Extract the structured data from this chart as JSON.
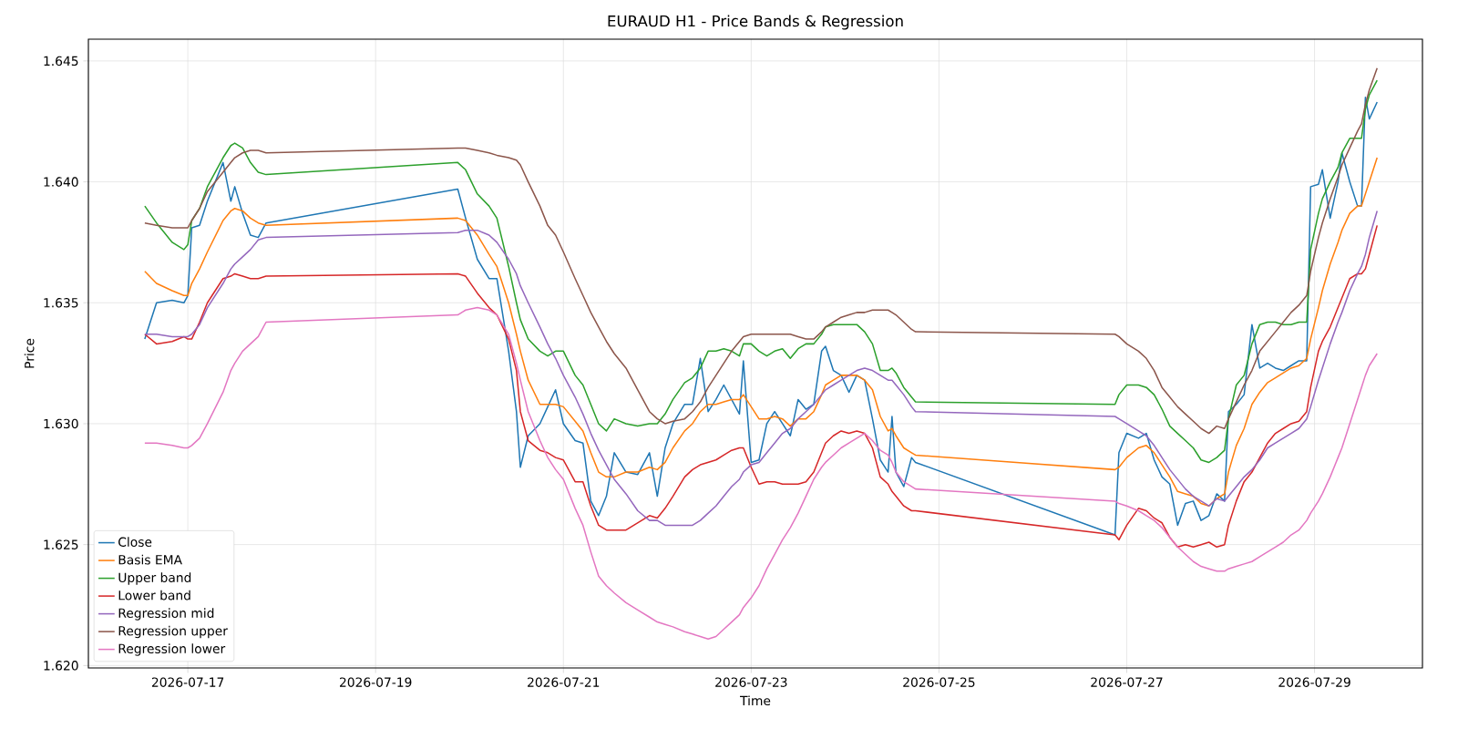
{
  "chart_data": {
    "type": "line",
    "title": "EURAUD H1 - Price Bands & Regression",
    "xlabel": "Time",
    "ylabel": "Price",
    "x": [
      "2026-07-16T13:00",
      "2026-07-16T16:00",
      "2026-07-16T20:00",
      "2026-07-16T23:00",
      "2026-07-17T00:00",
      "2026-07-17T01:00",
      "2026-07-17T03:00",
      "2026-07-17T05:00",
      "2026-07-17T09:00",
      "2026-07-17T11:00",
      "2026-07-17T12:00",
      "2026-07-17T14:00",
      "2026-07-17T16:00",
      "2026-07-17T18:00",
      "2026-07-17T20:00",
      "2026-07-19T21:00",
      "2026-07-19T23:00",
      "2026-07-20T02:00",
      "2026-07-20T05:00",
      "2026-07-20T07:00",
      "2026-07-20T10:00",
      "2026-07-20T12:00",
      "2026-07-20T13:00",
      "2026-07-20T15:00",
      "2026-07-20T18:00",
      "2026-07-20T20:00",
      "2026-07-20T22:00",
      "2026-07-21T00:00",
      "2026-07-21T03:00",
      "2026-07-21T05:00",
      "2026-07-21T07:00",
      "2026-07-21T09:00",
      "2026-07-21T11:00",
      "2026-07-21T13:00",
      "2026-07-21T16:00",
      "2026-07-21T19:00",
      "2026-07-21T22:00",
      "2026-07-22T00:00",
      "2026-07-22T02:00",
      "2026-07-22T04:00",
      "2026-07-22T07:00",
      "2026-07-22T09:00",
      "2026-07-22T11:00",
      "2026-07-22T13:00",
      "2026-07-22T15:00",
      "2026-07-22T17:00",
      "2026-07-22T19:00",
      "2026-07-22T21:00",
      "2026-07-22T22:00",
      "2026-07-23T00:00",
      "2026-07-23T02:00",
      "2026-07-23T04:00",
      "2026-07-23T06:00",
      "2026-07-23T08:00",
      "2026-07-23T10:00",
      "2026-07-23T12:00",
      "2026-07-23T14:00",
      "2026-07-23T16:00",
      "2026-07-23T18:00",
      "2026-07-23T19:00",
      "2026-07-23T21:00",
      "2026-07-23T23:00",
      "2026-07-24T01:00",
      "2026-07-24T03:00",
      "2026-07-24T05:00",
      "2026-07-24T07:00",
      "2026-07-24T09:00",
      "2026-07-24T11:00",
      "2026-07-24T12:00",
      "2026-07-24T13:00",
      "2026-07-24T15:00",
      "2026-07-24T17:00",
      "2026-07-24T18:00",
      "2026-07-26T21:00",
      "2026-07-26T22:00",
      "2026-07-27T00:00",
      "2026-07-27T03:00",
      "2026-07-27T05:00",
      "2026-07-27T07:00",
      "2026-07-27T09:00",
      "2026-07-27T11:00",
      "2026-07-27T13:00",
      "2026-07-27T15:00",
      "2026-07-27T17:00",
      "2026-07-27T19:00",
      "2026-07-27T21:00",
      "2026-07-27T23:00",
      "2026-07-28T01:00",
      "2026-07-28T02:00",
      "2026-07-28T04:00",
      "2026-07-28T06:00",
      "2026-07-28T08:00",
      "2026-07-28T10:00",
      "2026-07-28T12:00",
      "2026-07-28T14:00",
      "2026-07-28T16:00",
      "2026-07-28T18:00",
      "2026-07-28T20:00",
      "2026-07-28T22:00",
      "2026-07-28T23:00",
      "2026-07-29T01:00",
      "2026-07-29T02:00",
      "2026-07-29T04:00",
      "2026-07-29T06:00",
      "2026-07-29T07:00",
      "2026-07-29T09:00",
      "2026-07-29T11:00",
      "2026-07-29T12:00",
      "2026-07-29T13:00",
      "2026-07-29T14:00",
      "2026-07-29T16:00"
    ],
    "series": [
      {
        "name": "Close",
        "color": "#1f77b4",
        "values": [
          1.6335,
          1.635,
          1.6351,
          1.635,
          1.6353,
          1.6381,
          1.6382,
          1.6392,
          1.6408,
          1.6392,
          1.6398,
          1.6387,
          1.6378,
          1.6377,
          1.6383,
          1.6397,
          1.6385,
          1.6368,
          1.636,
          1.636,
          1.633,
          1.6305,
          1.6282,
          1.6295,
          1.63,
          1.6307,
          1.6314,
          1.63,
          1.6293,
          1.6292,
          1.6268,
          1.6262,
          1.627,
          1.6288,
          1.628,
          1.6279,
          1.6288,
          1.627,
          1.629,
          1.63,
          1.6308,
          1.6308,
          1.6327,
          1.6305,
          1.631,
          1.6316,
          1.631,
          1.6304,
          1.6326,
          1.6284,
          1.6285,
          1.63,
          1.6305,
          1.63,
          1.6295,
          1.631,
          1.6306,
          1.6308,
          1.633,
          1.6332,
          1.6322,
          1.632,
          1.6313,
          1.632,
          1.6318,
          1.6302,
          1.6285,
          1.628,
          1.6303,
          1.628,
          1.6274,
          1.6286,
          1.6284,
          1.6254,
          1.6288,
          1.6296,
          1.6294,
          1.6296,
          1.6285,
          1.6278,
          1.6275,
          1.6258,
          1.6267,
          1.6268,
          1.626,
          1.6262,
          1.6271,
          1.6268,
          1.6305,
          1.6308,
          1.6312,
          1.6341,
          1.6323,
          1.6325,
          1.6323,
          1.6322,
          1.6324,
          1.6326,
          1.6326,
          1.6398,
          1.6399,
          1.6405,
          1.6385,
          1.64,
          1.6412,
          1.64,
          1.639,
          1.639,
          1.6435,
          1.6426,
          1.6433
        ]
      },
      {
        "name": "Basis EMA",
        "color": "#ff7f0e",
        "values": [
          1.6363,
          1.6358,
          1.6355,
          1.6353,
          1.6353,
          1.6358,
          1.6364,
          1.6371,
          1.6384,
          1.6388,
          1.6389,
          1.6388,
          1.6385,
          1.6383,
          1.6382,
          1.6385,
          1.6384,
          1.6378,
          1.637,
          1.6365,
          1.635,
          1.6337,
          1.633,
          1.6318,
          1.6308,
          1.6308,
          1.6308,
          1.6307,
          1.6301,
          1.6297,
          1.6288,
          1.628,
          1.6278,
          1.6278,
          1.628,
          1.628,
          1.6282,
          1.6281,
          1.6284,
          1.629,
          1.6297,
          1.63,
          1.6305,
          1.6308,
          1.6308,
          1.6309,
          1.631,
          1.631,
          1.6312,
          1.6307,
          1.6302,
          1.6302,
          1.6303,
          1.6302,
          1.6299,
          1.6302,
          1.6302,
          1.6305,
          1.6312,
          1.6316,
          1.6318,
          1.632,
          1.632,
          1.632,
          1.6318,
          1.6314,
          1.6303,
          1.6297,
          1.6298,
          1.6295,
          1.629,
          1.6288,
          1.6287,
          1.6281,
          1.6282,
          1.6286,
          1.629,
          1.6291,
          1.6288,
          1.6283,
          1.6278,
          1.6272,
          1.6271,
          1.627,
          1.6267,
          1.6266,
          1.6269,
          1.6271,
          1.628,
          1.6291,
          1.6298,
          1.6308,
          1.6313,
          1.6317,
          1.6319,
          1.6321,
          1.6323,
          1.6324,
          1.6327,
          1.6335,
          1.6348,
          1.6355,
          1.6366,
          1.6375,
          1.638,
          1.6387,
          1.639,
          1.639,
          1.6395,
          1.64,
          1.641
        ]
      },
      {
        "name": "Upper band",
        "color": "#2ca02c",
        "values": [
          1.639,
          1.6383,
          1.6375,
          1.6372,
          1.6374,
          1.6384,
          1.6389,
          1.6398,
          1.641,
          1.6415,
          1.6416,
          1.6414,
          1.6408,
          1.6404,
          1.6403,
          1.6408,
          1.6405,
          1.6395,
          1.639,
          1.6385,
          1.6365,
          1.635,
          1.6343,
          1.6335,
          1.633,
          1.6328,
          1.633,
          1.633,
          1.632,
          1.6316,
          1.6308,
          1.63,
          1.6297,
          1.6302,
          1.63,
          1.6299,
          1.63,
          1.63,
          1.6304,
          1.631,
          1.6317,
          1.6319,
          1.6323,
          1.633,
          1.633,
          1.6331,
          1.633,
          1.6328,
          1.6333,
          1.6333,
          1.633,
          1.6328,
          1.633,
          1.6331,
          1.6327,
          1.6331,
          1.6333,
          1.6333,
          1.6337,
          1.634,
          1.6341,
          1.6341,
          1.6341,
          1.6341,
          1.6338,
          1.6333,
          1.6322,
          1.6322,
          1.6323,
          1.6321,
          1.6315,
          1.6311,
          1.6309,
          1.6308,
          1.6312,
          1.6316,
          1.6316,
          1.6315,
          1.6312,
          1.6306,
          1.6299,
          1.6296,
          1.6293,
          1.629,
          1.6285,
          1.6284,
          1.6286,
          1.6289,
          1.6302,
          1.6316,
          1.632,
          1.6333,
          1.6341,
          1.6342,
          1.6342,
          1.6341,
          1.6341,
          1.6342,
          1.6342,
          1.6372,
          1.6387,
          1.6393,
          1.64,
          1.6406,
          1.6412,
          1.6418,
          1.6418,
          1.6418,
          1.643,
          1.6436,
          1.6442
        ]
      },
      {
        "name": "Lower band",
        "color": "#d62728",
        "values": [
          1.6337,
          1.6333,
          1.6334,
          1.6336,
          1.6335,
          1.6335,
          1.6342,
          1.635,
          1.636,
          1.6361,
          1.6362,
          1.6361,
          1.636,
          1.636,
          1.6361,
          1.6362,
          1.6361,
          1.6354,
          1.6348,
          1.6345,
          1.6335,
          1.6322,
          1.6305,
          1.6293,
          1.6289,
          1.6288,
          1.6286,
          1.6285,
          1.6276,
          1.6276,
          1.6266,
          1.6258,
          1.6256,
          1.6256,
          1.6256,
          1.6259,
          1.6262,
          1.6261,
          1.6265,
          1.627,
          1.6278,
          1.6281,
          1.6283,
          1.6284,
          1.6285,
          1.6287,
          1.6289,
          1.629,
          1.629,
          1.6282,
          1.6275,
          1.6276,
          1.6276,
          1.6275,
          1.6275,
          1.6275,
          1.6276,
          1.628,
          1.6288,
          1.6292,
          1.6295,
          1.6297,
          1.6296,
          1.6297,
          1.6296,
          1.629,
          1.6278,
          1.6275,
          1.6272,
          1.627,
          1.6266,
          1.6264,
          1.6264,
          1.6254,
          1.6252,
          1.6258,
          1.6265,
          1.6264,
          1.6261,
          1.6259,
          1.6253,
          1.6249,
          1.625,
          1.6249,
          1.625,
          1.6251,
          1.6249,
          1.625,
          1.6258,
          1.6268,
          1.6276,
          1.628,
          1.6286,
          1.6292,
          1.6296,
          1.6298,
          1.63,
          1.6301,
          1.6305,
          1.6315,
          1.633,
          1.6334,
          1.634,
          1.6348,
          1.6352,
          1.636,
          1.6362,
          1.6362,
          1.6364,
          1.637,
          1.6382
        ]
      },
      {
        "name": "Regression mid",
        "color": "#9467bd",
        "values": [
          1.6337,
          1.6337,
          1.6336,
          1.6336,
          1.6336,
          1.6337,
          1.6341,
          1.6348,
          1.6358,
          1.6364,
          1.6366,
          1.6369,
          1.6372,
          1.6376,
          1.6377,
          1.6379,
          1.638,
          1.638,
          1.6378,
          1.6375,
          1.6368,
          1.6362,
          1.6357,
          1.635,
          1.634,
          1.6333,
          1.6327,
          1.632,
          1.6311,
          1.6304,
          1.6296,
          1.6289,
          1.6283,
          1.6277,
          1.6271,
          1.6264,
          1.626,
          1.626,
          1.6258,
          1.6258,
          1.6258,
          1.6258,
          1.626,
          1.6263,
          1.6266,
          1.627,
          1.6274,
          1.6277,
          1.628,
          1.6283,
          1.6284,
          1.6288,
          1.6292,
          1.6296,
          1.6298,
          1.6302,
          1.6305,
          1.6308,
          1.6312,
          1.6314,
          1.6316,
          1.6318,
          1.632,
          1.6322,
          1.6323,
          1.6322,
          1.632,
          1.6318,
          1.6318,
          1.6316,
          1.6312,
          1.6307,
          1.6305,
          1.6303,
          1.6302,
          1.63,
          1.6297,
          1.6295,
          1.6291,
          1.6286,
          1.6281,
          1.6277,
          1.6273,
          1.627,
          1.6268,
          1.6266,
          1.6269,
          1.6268,
          1.627,
          1.6274,
          1.6278,
          1.6281,
          1.6285,
          1.629,
          1.6292,
          1.6294,
          1.6296,
          1.6298,
          1.6302,
          1.6307,
          1.6318,
          1.6323,
          1.6333,
          1.6342,
          1.6346,
          1.6355,
          1.6362,
          1.6365,
          1.637,
          1.6377,
          1.6388
        ]
      },
      {
        "name": "Regression upper",
        "color": "#8c564b",
        "values": [
          1.6383,
          1.6382,
          1.6381,
          1.6381,
          1.6381,
          1.6384,
          1.6389,
          1.6396,
          1.6404,
          1.6408,
          1.641,
          1.6412,
          1.6413,
          1.6413,
          1.6412,
          1.6414,
          1.6414,
          1.6413,
          1.6412,
          1.6411,
          1.641,
          1.6409,
          1.6407,
          1.64,
          1.639,
          1.6382,
          1.6378,
          1.6371,
          1.636,
          1.6353,
          1.6346,
          1.634,
          1.6334,
          1.6329,
          1.6323,
          1.6314,
          1.6305,
          1.6302,
          1.63,
          1.6301,
          1.6302,
          1.6305,
          1.6309,
          1.6315,
          1.632,
          1.6325,
          1.633,
          1.6334,
          1.6336,
          1.6337,
          1.6337,
          1.6337,
          1.6337,
          1.6337,
          1.6337,
          1.6336,
          1.6335,
          1.6335,
          1.6338,
          1.634,
          1.6342,
          1.6344,
          1.6345,
          1.6346,
          1.6346,
          1.6347,
          1.6347,
          1.6347,
          1.6346,
          1.6345,
          1.6342,
          1.6339,
          1.6338,
          1.6337,
          1.6336,
          1.6333,
          1.633,
          1.6327,
          1.6322,
          1.6315,
          1.6311,
          1.6307,
          1.6304,
          1.6301,
          1.6298,
          1.6296,
          1.6299,
          1.6298,
          1.6302,
          1.6309,
          1.6316,
          1.6322,
          1.633,
          1.6334,
          1.6338,
          1.6342,
          1.6346,
          1.6349,
          1.6353,
          1.6363,
          1.6377,
          1.6383,
          1.6393,
          1.6402,
          1.6407,
          1.6414,
          1.6421,
          1.6424,
          1.6432,
          1.6438,
          1.6447
        ]
      },
      {
        "name": "Regression lower",
        "color": "#e377c2",
        "values": [
          1.6292,
          1.6292,
          1.6291,
          1.629,
          1.629,
          1.6291,
          1.6294,
          1.63,
          1.6313,
          1.6322,
          1.6325,
          1.633,
          1.6333,
          1.6336,
          1.6342,
          1.6345,
          1.6347,
          1.6348,
          1.6347,
          1.6345,
          1.6337,
          1.6325,
          1.6318,
          1.6305,
          1.6293,
          1.6286,
          1.6281,
          1.6277,
          1.6265,
          1.6258,
          1.6247,
          1.6237,
          1.6233,
          1.623,
          1.6226,
          1.6223,
          1.622,
          1.6218,
          1.6217,
          1.6216,
          1.6214,
          1.6213,
          1.6212,
          1.6211,
          1.6212,
          1.6215,
          1.6218,
          1.6221,
          1.6224,
          1.6228,
          1.6233,
          1.624,
          1.6246,
          1.6252,
          1.6257,
          1.6263,
          1.627,
          1.6277,
          1.6282,
          1.6284,
          1.6287,
          1.629,
          1.6292,
          1.6294,
          1.6296,
          1.6293,
          1.6289,
          1.6287,
          1.6284,
          1.628,
          1.6276,
          1.6274,
          1.6273,
          1.6268,
          1.6267,
          1.6266,
          1.6264,
          1.6262,
          1.626,
          1.6257,
          1.6253,
          1.6249,
          1.6246,
          1.6243,
          1.6241,
          1.624,
          1.6239,
          1.6239,
          1.624,
          1.6241,
          1.6242,
          1.6243,
          1.6245,
          1.6247,
          1.6249,
          1.6251,
          1.6254,
          1.6256,
          1.626,
          1.6263,
          1.6268,
          1.6271,
          1.6278,
          1.6286,
          1.629,
          1.63,
          1.631,
          1.6315,
          1.632,
          1.6324,
          1.6329
        ]
      }
    ],
    "xlim": [
      "2026-07-15T22:35",
      "2026-07-30T03:35"
    ],
    "xticks": [
      "2026-07-17",
      "2026-07-19",
      "2026-07-21",
      "2026-07-23",
      "2026-07-25",
      "2026-07-27",
      "2026-07-29"
    ],
    "ylim": [
      1.6199,
      1.6459
    ],
    "yticks": [
      {
        "value": 1.62,
        "label": "1.620"
      },
      {
        "value": 1.625,
        "label": "1.625"
      },
      {
        "value": 1.63,
        "label": "1.630"
      },
      {
        "value": 1.635,
        "label": "1.635"
      },
      {
        "value": 1.64,
        "label": "1.640"
      },
      {
        "value": 1.645,
        "label": "1.645"
      }
    ],
    "grid": true,
    "legend": "bottom left"
  }
}
